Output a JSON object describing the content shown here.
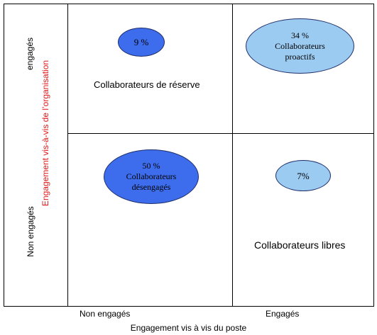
{
  "axes": {
    "x_label": "Engagement vis à vis du poste",
    "x_ticks": [
      "Non engagés",
      "Engagés"
    ],
    "y_label": "Engagement vis-à-vis de l’organisation",
    "y_ticks": [
      "Non engagés",
      "engagés"
    ]
  },
  "quadrants": {
    "top_left": {
      "label": "Collaborateurs de réserve",
      "bubble": {
        "text": "9 %",
        "color": "#3d6ded"
      }
    },
    "top_right": {
      "bubble": {
        "text": "34 %\nCollaborateurs\nproactifs",
        "color": "#9ccbf2"
      }
    },
    "bottom_left": {
      "bubble": {
        "text": "50 %\nCollaborateurs\ndésengagés",
        "color": "#3d6ded"
      }
    },
    "bottom_right": {
      "label": "Collaborateurs libres",
      "bubble": {
        "text": "7%",
        "color": "#9ccbf2"
      }
    }
  },
  "colors": {
    "axis_label_y": "#e01b1b",
    "bubble_dark": "#3d6ded",
    "bubble_light": "#9ccbf2"
  }
}
